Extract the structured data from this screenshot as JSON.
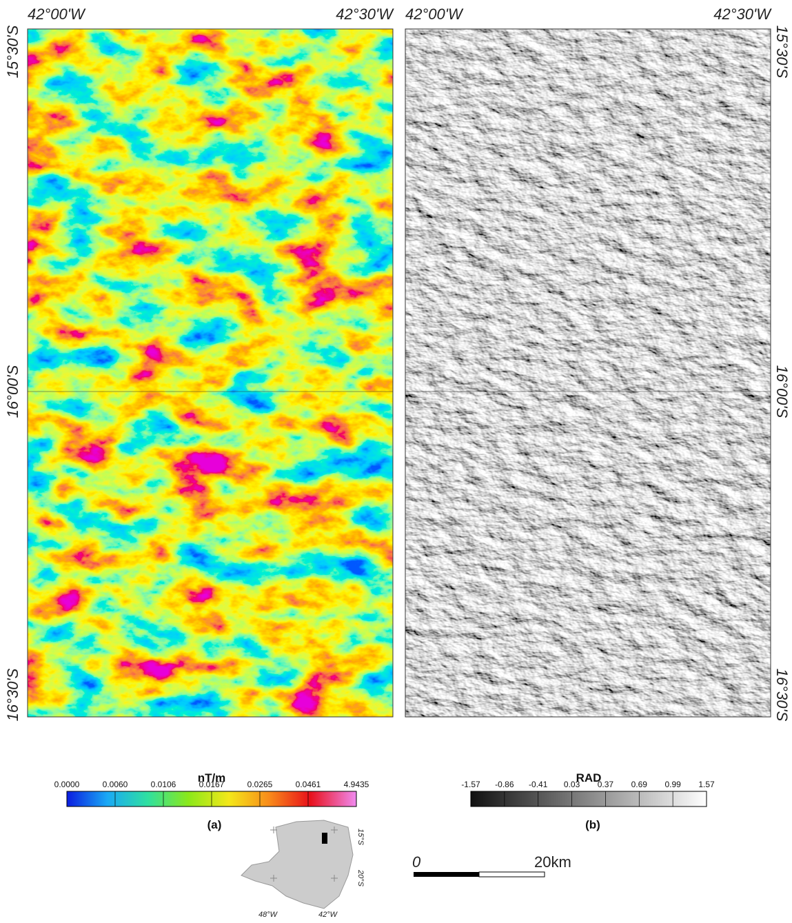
{
  "panels": [
    {
      "top_labels": [
        "42°00'W",
        "42°30'W"
      ],
      "side_labels": [
        "15°30'S",
        "16°00'S",
        "16°30'S"
      ],
      "caption": "(a)",
      "colorbar": {
        "title": "nT/m",
        "labels": [
          "0.0000",
          "0.0060",
          "0.0106",
          "0.0167",
          "0.0265",
          "0.0461",
          "4.9435"
        ]
      }
    },
    {
      "top_labels": [
        "42°00'W",
        "42°30'W"
      ],
      "side_labels": [
        "15°30'S",
        "16°00'S",
        "16°30'S"
      ],
      "caption": "(b)",
      "colorbar": {
        "title": "RAD",
        "labels": [
          "-1.57",
          "-0.86",
          "-0.41",
          "0.03",
          "0.37",
          "0.69",
          "0.99",
          "1.57"
        ]
      }
    }
  ],
  "inset": {
    "lat_labels": [
      "15°S",
      "20°S"
    ],
    "lon_labels": [
      "48°W",
      "42°W"
    ]
  },
  "scale_bar": {
    "start": "0",
    "end": "20km"
  }
}
